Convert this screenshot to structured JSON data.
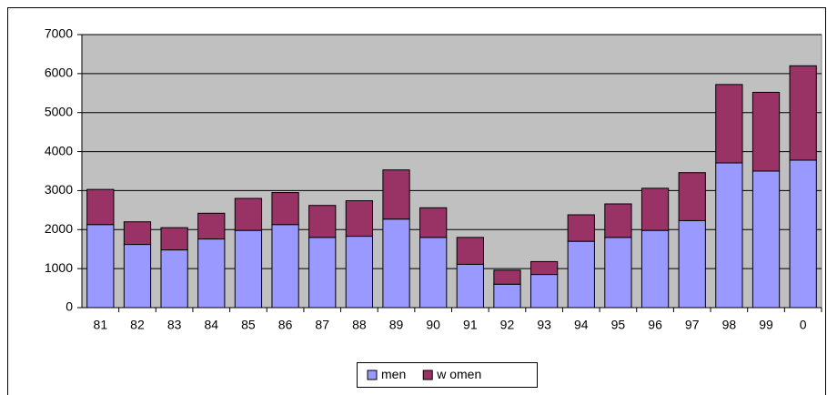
{
  "chart_data": {
    "type": "stacked-bar",
    "categories": [
      "81",
      "82",
      "83",
      "84",
      "85",
      "86",
      "87",
      "88",
      "89",
      "90",
      "91",
      "92",
      "93",
      "94",
      "95",
      "96",
      "97",
      "98",
      "99",
      "0"
    ],
    "series": [
      {
        "name": "men",
        "color": "#9999ff",
        "values": [
          2130,
          1620,
          1480,
          1760,
          1980,
          2130,
          1800,
          1830,
          2270,
          1800,
          1110,
          600,
          850,
          1700,
          1800,
          1980,
          2230,
          3710,
          3500,
          3780
        ]
      },
      {
        "name": "w omen",
        "color": "#993366",
        "values": [
          900,
          580,
          570,
          660,
          820,
          820,
          820,
          910,
          1260,
          760,
          690,
          360,
          330,
          680,
          860,
          1080,
          1230,
          2010,
          2020,
          2420
        ]
      }
    ],
    "ylim": [
      0,
      7000
    ],
    "yticks": [
      0,
      1000,
      2000,
      3000,
      4000,
      5000,
      6000,
      7000
    ],
    "grid": true,
    "legend": "bottom"
  }
}
